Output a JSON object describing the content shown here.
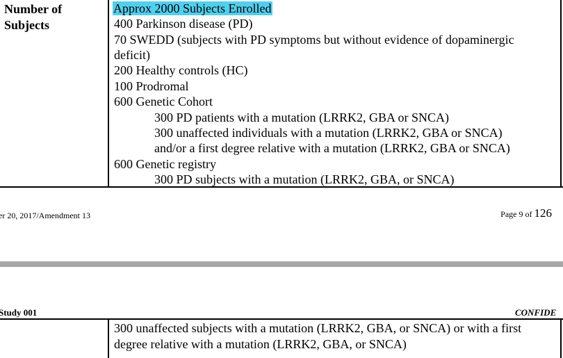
{
  "table_top": {
    "label_lines": [
      "Number of",
      "Subjects"
    ],
    "highlighted": "Approx 2000 Subjects Enrolled",
    "lines": [
      "400 Parkinson disease (PD)",
      "70 SWEDD (subjects with PD symptoms but without evidence of dopaminergic",
      "deficit)",
      "200 Healthy controls (HC)",
      "100 Prodromal",
      "600 Genetic Cohort"
    ],
    "genetic_cohort_items": [
      "300 PD patients with a mutation (LRRK2, GBA or SNCA)",
      "300 unaffected individuals with a mutation (LRRK2, GBA or SNCA)",
      "and/or a first degree relative with a mutation (LRRK2, GBA or SNCA)"
    ],
    "registry_line": "600 Genetic registry",
    "registry_items": [
      "300 PD subjects with a mutation (LRRK2, GBA, or SNCA)"
    ]
  },
  "footer": {
    "left": "er 20, 2017/Amendment 13",
    "page_prefix": "Page 9 of",
    "page_total": "126"
  },
  "next_page": {
    "header_left": "Study 001",
    "header_right": "CONFIDE",
    "lines": [
      "300 unaffected subjects with a mutation (LRRK2, GBA, or SNCA) or with a first",
      "degree relative with a mutation (LRRK2, GBA, or SNCA)"
    ]
  },
  "colors": {
    "highlight": "#4fd0ee",
    "page_gap": "#a7a7a7"
  }
}
